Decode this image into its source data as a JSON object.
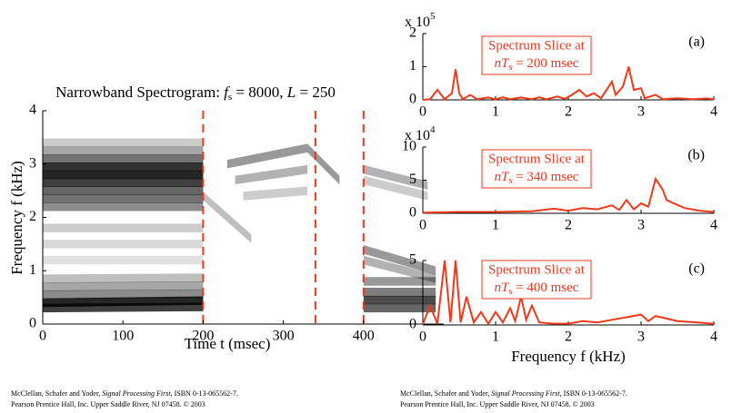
{
  "chart_data": [
    {
      "type": "spectrogram",
      "title_parts": [
        "Narrowband Spectrogram: ",
        "f",
        "s",
        " = 8000, ",
        "L",
        " = 250"
      ],
      "xlabel": "Time t  (msec)",
      "ylabel": "Frequency  f  (kHz)",
      "xlim": [
        0,
        500
      ],
      "ylim": [
        0,
        4
      ],
      "xticks": [
        0,
        100,
        200,
        300,
        400
      ],
      "yticks": [
        0,
        1,
        2,
        3,
        4
      ],
      "markers": [
        200,
        340,
        400
      ],
      "marker_color": "#e8381e",
      "streaks": [
        {
          "t": [
            0,
            200
          ],
          "f": [
            0.3,
            0.32
          ],
          "level": 0.75
        },
        {
          "t": [
            0,
            200
          ],
          "f": [
            0.4,
            0.44
          ],
          "level": 0.85
        },
        {
          "t": [
            0,
            200
          ],
          "f": [
            0.55,
            0.57
          ],
          "level": 0.45
        },
        {
          "t": [
            0,
            200
          ],
          "f": [
            0.7,
            0.72
          ],
          "level": 0.35
        },
        {
          "t": [
            0,
            200
          ],
          "f": [
            0.85,
            0.87
          ],
          "level": 0.25
        },
        {
          "t": [
            0,
            200
          ],
          "f": [
            1.2,
            1.2
          ],
          "level": 0.12
        },
        {
          "t": [
            0,
            200
          ],
          "f": [
            1.5,
            1.5
          ],
          "level": 0.15
        },
        {
          "t": [
            0,
            200
          ],
          "f": [
            1.8,
            1.8
          ],
          "level": 0.2
        },
        {
          "t": [
            0,
            200
          ],
          "f": [
            2.2,
            2.2
          ],
          "level": 0.45
        },
        {
          "t": [
            0,
            200
          ],
          "f": [
            2.35,
            2.35
          ],
          "level": 0.55
        },
        {
          "t": [
            0,
            200
          ],
          "f": [
            2.5,
            2.5
          ],
          "level": 0.6
        },
        {
          "t": [
            0,
            200
          ],
          "f": [
            2.65,
            2.65
          ],
          "level": 0.75
        },
        {
          "t": [
            0,
            200
          ],
          "f": [
            2.8,
            2.8
          ],
          "level": 0.85
        },
        {
          "t": [
            0,
            200
          ],
          "f": [
            2.95,
            2.95
          ],
          "level": 0.8
        },
        {
          "t": [
            0,
            200
          ],
          "f": [
            3.1,
            3.1
          ],
          "level": 0.55
        },
        {
          "t": [
            0,
            200
          ],
          "f": [
            3.25,
            3.25
          ],
          "level": 0.35
        },
        {
          "t": [
            0,
            200
          ],
          "f": [
            3.4,
            3.4
          ],
          "level": 0.2
        },
        {
          "t": [
            200,
            260
          ],
          "f": [
            2.4,
            1.6
          ],
          "level": 0.25
        },
        {
          "t": [
            230,
            330
          ],
          "f": [
            3.0,
            3.3
          ],
          "level": 0.4
        },
        {
          "t": [
            240,
            330
          ],
          "f": [
            2.7,
            2.9
          ],
          "level": 0.3
        },
        {
          "t": [
            250,
            330
          ],
          "f": [
            2.4,
            2.5
          ],
          "level": 0.2
        },
        {
          "t": [
            330,
            370
          ],
          "f": [
            3.3,
            2.7
          ],
          "level": 0.4
        },
        {
          "t": [
            400,
            490
          ],
          "f": [
            0.3,
            0.3
          ],
          "level": 0.6
        },
        {
          "t": [
            400,
            490
          ],
          "f": [
            0.45,
            0.45
          ],
          "level": 0.7
        },
        {
          "t": [
            400,
            490
          ],
          "f": [
            0.6,
            0.6
          ],
          "level": 0.5
        },
        {
          "t": [
            400,
            490
          ],
          "f": [
            0.8,
            0.8
          ],
          "level": 0.4
        },
        {
          "t": [
            400,
            490
          ],
          "f": [
            1.4,
            1.0
          ],
          "level": 0.4
        },
        {
          "t": [
            400,
            490
          ],
          "f": [
            1.2,
            0.85
          ],
          "level": 0.3
        },
        {
          "t": [
            400,
            480
          ],
          "f": [
            2.9,
            2.6
          ],
          "level": 0.3
        },
        {
          "t": [
            400,
            480
          ],
          "f": [
            2.7,
            2.4
          ],
          "level": 0.2
        }
      ]
    },
    {
      "type": "line",
      "panel": "(a)",
      "color": "#ee3a1a",
      "y_scale": "x 10",
      "y_exponent": "5",
      "annotation": [
        "Spectrum Slice at",
        "nT",
        "s",
        " = 200 msec"
      ],
      "xlim": [
        0,
        4
      ],
      "ylim": [
        0,
        2
      ],
      "xticks": [
        0,
        1,
        2,
        3,
        4
      ],
      "yticks": [
        0,
        1,
        2
      ],
      "x": [
        0,
        0.1,
        0.2,
        0.3,
        0.4,
        0.45,
        0.5,
        0.55,
        0.65,
        0.75,
        0.9,
        1.0,
        1.1,
        1.2,
        1.35,
        1.5,
        1.6,
        1.7,
        1.85,
        1.95,
        2.05,
        2.15,
        2.25,
        2.35,
        2.45,
        2.6,
        2.65,
        2.75,
        2.83,
        2.9,
        3.0,
        3.05,
        3.2,
        3.3,
        3.5,
        3.7,
        3.9,
        4
      ],
      "values": [
        0,
        0.02,
        0.3,
        0.02,
        0.2,
        0.92,
        0.2,
        0.02,
        0.15,
        0.02,
        0.07,
        0.02,
        0.08,
        0.02,
        0.07,
        0.02,
        0.08,
        0.02,
        0.1,
        0.03,
        0.15,
        0.3,
        0.1,
        0.2,
        0.05,
        0.55,
        0.15,
        0.4,
        1.0,
        0.3,
        0.35,
        0.05,
        0.15,
        0.02,
        0.05,
        0.02,
        0.04,
        0.02
      ]
    },
    {
      "type": "line",
      "panel": "(b)",
      "color": "#ee3a1a",
      "y_scale": "x 10",
      "y_exponent": "4",
      "annotation": [
        "Spectrum Slice at",
        "nT",
        "s",
        " = 340 msec"
      ],
      "xlim": [
        0,
        4
      ],
      "ylim": [
        0,
        10
      ],
      "xticks": [
        0,
        1,
        2,
        3,
        4
      ],
      "yticks": [
        0,
        5,
        10
      ],
      "x": [
        0,
        0.5,
        1,
        1.5,
        1.8,
        2.0,
        2.2,
        2.4,
        2.6,
        2.7,
        2.8,
        2.9,
        3.0,
        3.1,
        3.2,
        3.3,
        3.35,
        3.45,
        3.6,
        3.8,
        4
      ],
      "values": [
        0.1,
        0.2,
        0.2,
        0.3,
        0.7,
        0.4,
        0.8,
        0.6,
        1.2,
        0.5,
        2.0,
        0.6,
        1.5,
        1.0,
        5.2,
        3.5,
        2.0,
        1.5,
        0.8,
        0.4,
        0.2
      ]
    },
    {
      "type": "line",
      "panel": "(c)",
      "color": "#ee3a1a",
      "annotation": [
        "Spectrum Slice at",
        "nT",
        "s",
        " = 400 msec"
      ],
      "xlabel": "Frequency  f  (kHz)",
      "xlim": [
        0,
        4
      ],
      "ylim": [
        0,
        5
      ],
      "xticks": [
        0,
        1,
        2,
        3,
        4
      ],
      "yticks": [
        0,
        5
      ],
      "x": [
        0,
        0.1,
        0.2,
        0.3,
        0.38,
        0.45,
        0.52,
        0.6,
        0.7,
        0.8,
        0.9,
        1.0,
        1.1,
        1.2,
        1.27,
        1.35,
        1.42,
        1.5,
        1.6,
        1.8,
        2.0,
        2.2,
        2.4,
        2.6,
        2.8,
        3.0,
        3.1,
        3.2,
        3.5,
        4
      ],
      "values": [
        0.05,
        1.5,
        0.1,
        5.0,
        0.2,
        5.0,
        0.2,
        2.2,
        0.2,
        1.0,
        0.1,
        1.0,
        0.2,
        1.3,
        0.3,
        2.2,
        0.4,
        1.5,
        0.2,
        0.1,
        0.1,
        0.3,
        0.2,
        0.4,
        0.6,
        0.8,
        0.3,
        0.7,
        0.3,
        0.1
      ]
    }
  ],
  "footer": {
    "line1": [
      "McClellan, Schafer and Yoder, ",
      "Signal Processing First",
      ", ISBN 0-13-065562-7."
    ],
    "line2": "Pearson Prentice Hall, Inc.  Upper Saddle River, NJ 07458.  © 2003"
  }
}
